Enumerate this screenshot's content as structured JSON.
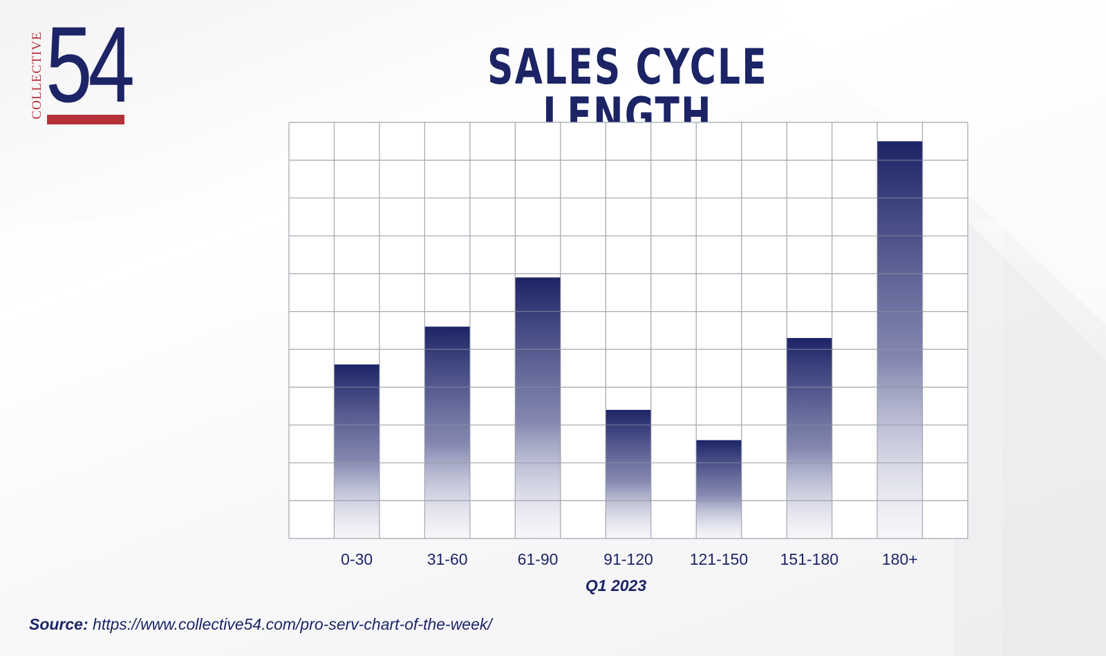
{
  "logo": {
    "side_text": "COLLECTIVE",
    "number": "54",
    "colors": {
      "navy": "#1c2466",
      "red": "#b5313a"
    }
  },
  "source": {
    "label": "Source:",
    "url": "https://www.collective54.com/pro-serv-chart-of-the-week/"
  },
  "chart_data": {
    "type": "bar",
    "title": "SALES CYCLE LENGTH",
    "xlabel": "Q1 2023",
    "ylabel": "",
    "categories": [
      "0-30",
      "31-60",
      "61-90",
      "91-120",
      "121-150",
      "151-180",
      "180+"
    ],
    "values": [
      4.6,
      5.6,
      6.9,
      3.4,
      2.6,
      5.3,
      10.5
    ],
    "ylim": [
      0,
      11
    ],
    "y_tick_labels_shown": false,
    "grid": true,
    "legend": "none",
    "bar_color": "#1c2466"
  }
}
